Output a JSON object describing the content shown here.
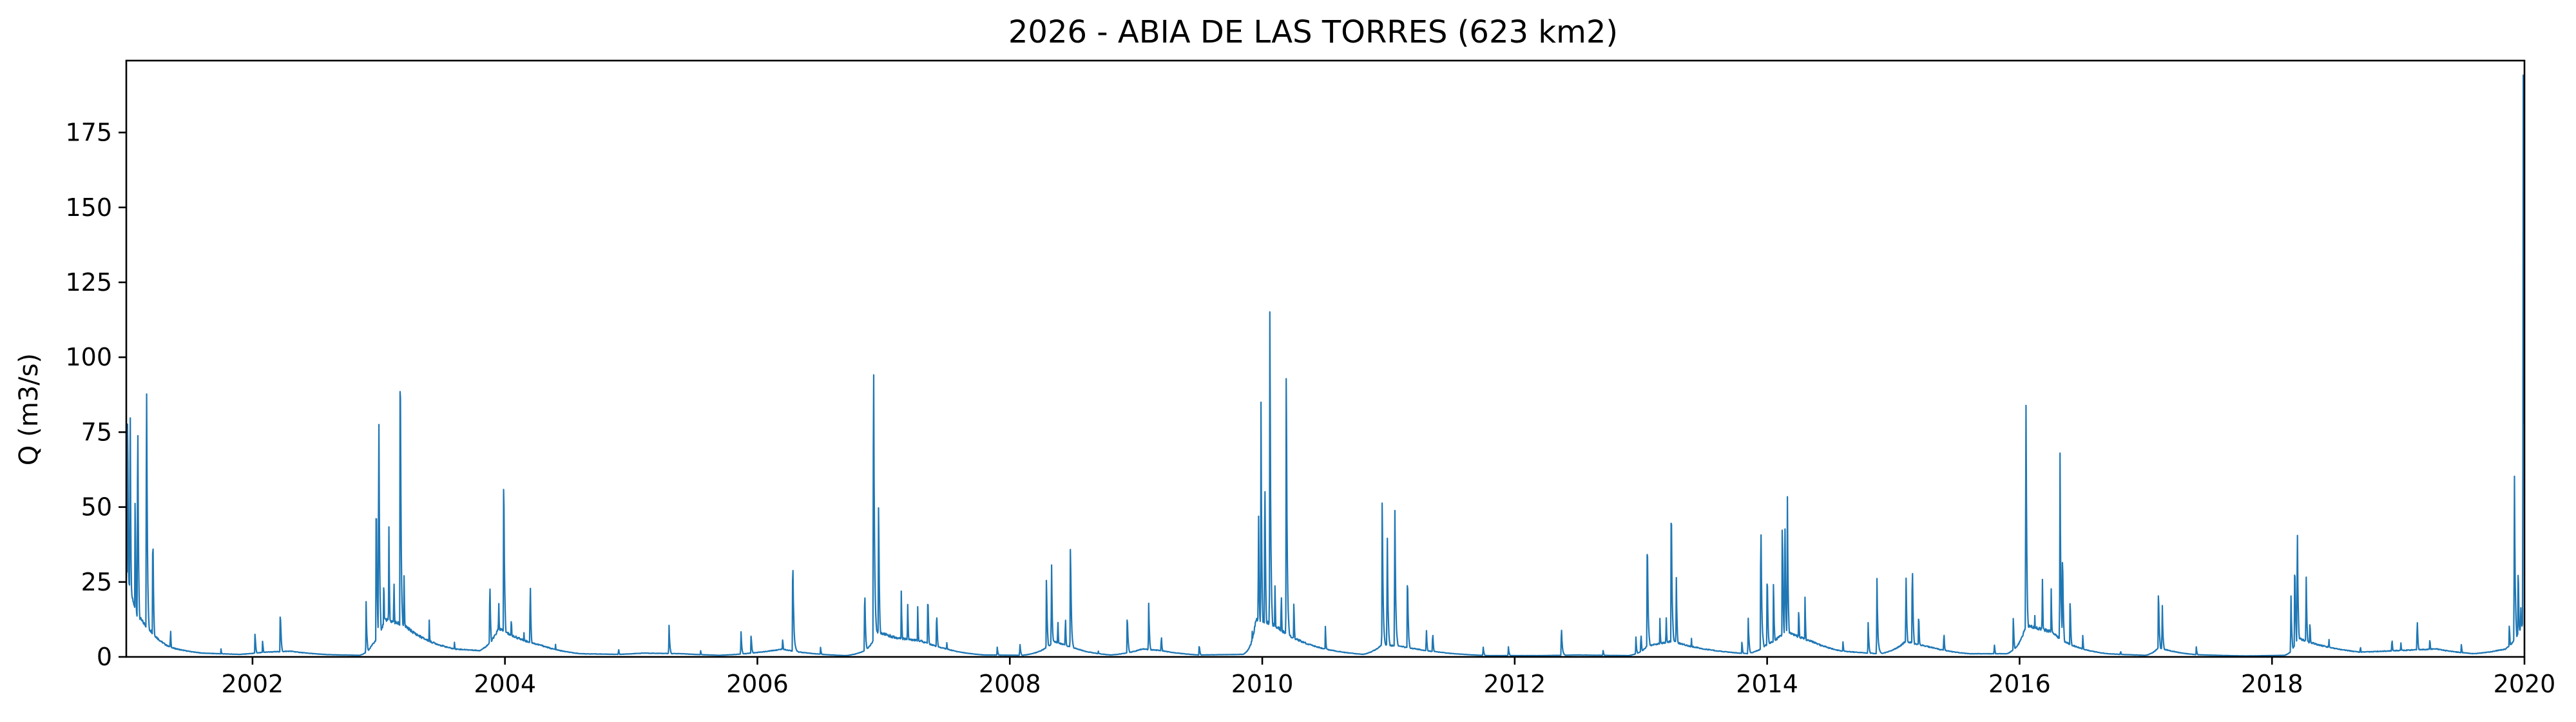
{
  "chart_data": {
    "type": "line",
    "title": "2026 - ABIA DE LAS TORRES (623 km2)",
    "xlabel": "",
    "ylabel": "Q (m3/s)",
    "xlim": [
      2001.0,
      2020.0
    ],
    "ylim": [
      0,
      199
    ],
    "grid": false,
    "x_ticks": [
      2002,
      2004,
      2006,
      2008,
      2010,
      2012,
      2014,
      2016,
      2018,
      2020
    ],
    "x_tick_labels": [
      "2002",
      "2004",
      "2006",
      "2008",
      "2010",
      "2012",
      "2014",
      "2016",
      "2018",
      "2020"
    ],
    "y_ticks": [
      0,
      25,
      50,
      75,
      100,
      125,
      150,
      175
    ],
    "y_tick_labels": [
      "0",
      "25",
      "50",
      "75",
      "100",
      "125",
      "150",
      "175"
    ],
    "series": [
      {
        "color": "#1f77b4",
        "baseflow": [
          [
            2001.0,
            30
          ],
          [
            2001.08,
            14
          ],
          [
            2001.2,
            8
          ],
          [
            2001.35,
            3
          ],
          [
            2001.6,
            1.2
          ],
          [
            2001.9,
            0.8
          ],
          [
            2002.1,
            1.5
          ],
          [
            2002.3,
            1.8
          ],
          [
            2002.6,
            0.7
          ],
          [
            2002.85,
            0.5
          ],
          [
            2002.95,
            4
          ],
          [
            2003.05,
            12
          ],
          [
            2003.2,
            10
          ],
          [
            2003.4,
            5
          ],
          [
            2003.6,
            2.5
          ],
          [
            2003.8,
            2.0
          ],
          [
            2003.95,
            9
          ],
          [
            2004.1,
            6
          ],
          [
            2004.3,
            3.5
          ],
          [
            2004.6,
            1.0
          ],
          [
            2004.9,
            0.8
          ],
          [
            2005.1,
            1.2
          ],
          [
            2005.4,
            1.0
          ],
          [
            2005.7,
            0.5
          ],
          [
            2005.95,
            1.2
          ],
          [
            2006.2,
            2.5
          ],
          [
            2006.4,
            1.2
          ],
          [
            2006.7,
            0.4
          ],
          [
            2006.85,
            2
          ],
          [
            2006.95,
            8
          ],
          [
            2007.1,
            6
          ],
          [
            2007.3,
            5
          ],
          [
            2007.5,
            2.5
          ],
          [
            2007.8,
            0.6
          ],
          [
            2008.1,
            0.5
          ],
          [
            2008.35,
            5
          ],
          [
            2008.5,
            3
          ],
          [
            2008.8,
            0.6
          ],
          [
            2009.05,
            2.5
          ],
          [
            2009.2,
            2.0
          ],
          [
            2009.5,
            0.6
          ],
          [
            2009.85,
            0.8
          ],
          [
            2009.95,
            12
          ],
          [
            2010.1,
            10
          ],
          [
            2010.25,
            6
          ],
          [
            2010.5,
            2.5
          ],
          [
            2010.8,
            0.8
          ],
          [
            2010.95,
            4
          ],
          [
            2011.15,
            3
          ],
          [
            2011.4,
            1.5
          ],
          [
            2011.8,
            0.4
          ],
          [
            2012.2,
            0.4
          ],
          [
            2012.5,
            0.6
          ],
          [
            2012.9,
            0.4
          ],
          [
            2013.05,
            3.5
          ],
          [
            2013.25,
            5
          ],
          [
            2013.5,
            2.5
          ],
          [
            2013.85,
            1.0
          ],
          [
            2014.0,
            4
          ],
          [
            2014.15,
            8
          ],
          [
            2014.35,
            5
          ],
          [
            2014.6,
            1.8
          ],
          [
            2014.9,
            1.0
          ],
          [
            2015.1,
            5
          ],
          [
            2015.3,
            3
          ],
          [
            2015.6,
            1.0
          ],
          [
            2015.9,
            1.0
          ],
          [
            2016.05,
            10
          ],
          [
            2016.25,
            8
          ],
          [
            2016.4,
            4
          ],
          [
            2016.7,
            1.0
          ],
          [
            2017.0,
            0.5
          ],
          [
            2017.1,
            3
          ],
          [
            2017.4,
            0.7
          ],
          [
            2017.8,
            0.3
          ],
          [
            2018.1,
            0.5
          ],
          [
            2018.2,
            6
          ],
          [
            2018.4,
            3.5
          ],
          [
            2018.7,
            1.5
          ],
          [
            2019.0,
            2.0
          ],
          [
            2019.3,
            2.5
          ],
          [
            2019.6,
            1.0
          ],
          [
            2019.85,
            2.5
          ],
          [
            2019.93,
            6
          ],
          [
            2020.0,
            12
          ]
        ],
        "peaks": [
          [
            2001.01,
            88
          ],
          [
            2001.03,
            92
          ],
          [
            2001.07,
            55
          ],
          [
            2001.09,
            88
          ],
          [
            2001.16,
            100
          ],
          [
            2001.21,
            45
          ],
          [
            2001.35,
            9
          ],
          [
            2001.75,
            2.5
          ],
          [
            2002.02,
            7.5
          ],
          [
            2002.08,
            5
          ],
          [
            2002.22,
            15.5
          ],
          [
            2002.9,
            16
          ],
          [
            2002.98,
            58
          ],
          [
            2003.0,
            85
          ],
          [
            2003.04,
            27
          ],
          [
            2003.08,
            42
          ],
          [
            2003.12,
            28
          ],
          [
            2003.17,
            111
          ],
          [
            2003.2,
            27
          ],
          [
            2003.28,
            5
          ],
          [
            2003.4,
            11
          ],
          [
            2003.6,
            5
          ],
          [
            2003.88,
            26
          ],
          [
            2003.95,
            19
          ],
          [
            2003.99,
            66
          ],
          [
            2004.05,
            13
          ],
          [
            2004.15,
            8
          ],
          [
            2004.2,
            25
          ],
          [
            2004.4,
            4
          ],
          [
            2004.9,
            2.5
          ],
          [
            2005.3,
            9.5
          ],
          [
            2005.55,
            2
          ],
          [
            2005.87,
            8
          ],
          [
            2005.95,
            7.5
          ],
          [
            2006.2,
            6
          ],
          [
            2006.28,
            35
          ],
          [
            2006.5,
            3
          ],
          [
            2006.85,
            23
          ],
          [
            2006.92,
            110
          ],
          [
            2006.96,
            53
          ],
          [
            2007.05,
            8
          ],
          [
            2007.14,
            20
          ],
          [
            2007.19,
            18
          ],
          [
            2007.27,
            15
          ],
          [
            2007.35,
            22
          ],
          [
            2007.42,
            16
          ],
          [
            2007.5,
            5
          ],
          [
            2007.9,
            3
          ],
          [
            2008.08,
            4
          ],
          [
            2008.29,
            27
          ],
          [
            2008.33,
            31
          ],
          [
            2008.38,
            12
          ],
          [
            2008.44,
            13
          ],
          [
            2008.48,
            39
          ],
          [
            2008.7,
            2
          ],
          [
            2008.93,
            14
          ],
          [
            2009.1,
            17
          ],
          [
            2009.2,
            7
          ],
          [
            2009.5,
            4
          ],
          [
            2009.92,
            8
          ],
          [
            2009.97,
            50
          ],
          [
            2009.99,
            79
          ],
          [
            2010.02,
            65
          ],
          [
            2010.06,
            120
          ],
          [
            2010.1,
            25
          ],
          [
            2010.15,
            22
          ],
          [
            2010.19,
            101
          ],
          [
            2010.25,
            18
          ],
          [
            2010.5,
            9
          ],
          [
            2010.95,
            55
          ],
          [
            2010.99,
            40
          ],
          [
            2011.05,
            51
          ],
          [
            2011.15,
            29
          ],
          [
            2011.3,
            9
          ],
          [
            2011.35,
            8
          ],
          [
            2011.75,
            3
          ],
          [
            2011.95,
            3
          ],
          [
            2012.37,
            9.5
          ],
          [
            2012.7,
            2
          ],
          [
            2012.96,
            6
          ],
          [
            2013.0,
            8
          ],
          [
            2013.05,
            43
          ],
          [
            2013.15,
            12
          ],
          [
            2013.2,
            13
          ],
          [
            2013.24,
            56
          ],
          [
            2013.28,
            25
          ],
          [
            2013.4,
            6
          ],
          [
            2013.8,
            5
          ],
          [
            2013.85,
            12
          ],
          [
            2013.95,
            47
          ],
          [
            2014.0,
            30
          ],
          [
            2014.05,
            25
          ],
          [
            2014.12,
            47
          ],
          [
            2014.14,
            49
          ],
          [
            2014.16,
            53
          ],
          [
            2014.25,
            17
          ],
          [
            2014.3,
            18
          ],
          [
            2014.6,
            5
          ],
          [
            2014.8,
            10
          ],
          [
            2014.87,
            23
          ],
          [
            2015.1,
            28
          ],
          [
            2015.15,
            32
          ],
          [
            2015.2,
            15
          ],
          [
            2015.4,
            8
          ],
          [
            2015.8,
            4
          ],
          [
            2015.95,
            13
          ],
          [
            2016.05,
            90
          ],
          [
            2016.12,
            14
          ],
          [
            2016.18,
            27
          ],
          [
            2016.25,
            22
          ],
          [
            2016.32,
            64
          ],
          [
            2016.34,
            37
          ],
          [
            2016.4,
            20
          ],
          [
            2016.5,
            7
          ],
          [
            2016.8,
            2
          ],
          [
            2017.1,
            23
          ],
          [
            2017.13,
            17
          ],
          [
            2017.4,
            3
          ],
          [
            2018.15,
            20
          ],
          [
            2018.18,
            34
          ],
          [
            2018.2,
            44
          ],
          [
            2018.27,
            27
          ],
          [
            2018.3,
            12
          ],
          [
            2018.45,
            6
          ],
          [
            2018.7,
            3.5
          ],
          [
            2018.95,
            6
          ],
          [
            2019.02,
            5
          ],
          [
            2019.15,
            12.5
          ],
          [
            2019.25,
            6
          ],
          [
            2019.5,
            4
          ],
          [
            2019.88,
            11
          ],
          [
            2019.92,
            61
          ],
          [
            2019.95,
            32
          ],
          [
            2019.97,
            18
          ],
          [
            2019.99,
            190
          ],
          [
            2020.0,
            150
          ]
        ]
      }
    ]
  }
}
